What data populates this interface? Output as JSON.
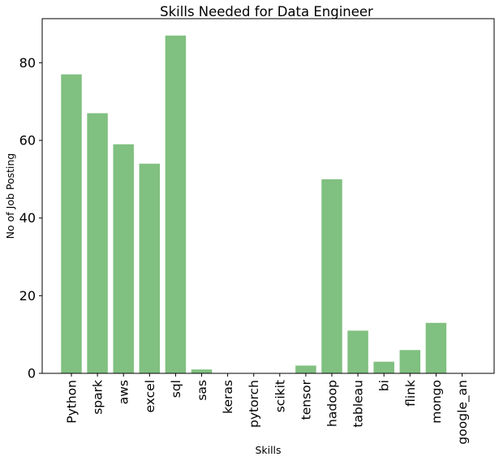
{
  "chart_data": {
    "type": "bar",
    "title": "Skills Needed for Data Engineer",
    "xlabel": "Skills",
    "ylabel": "No of Job Posting",
    "categories": [
      "Python",
      "spark",
      "aws",
      "excel",
      "sql",
      "sas",
      "keras",
      "pytorch",
      "scikit",
      "tensor",
      "hadoop",
      "tableau",
      "bi",
      "flink",
      "mongo",
      "google_an"
    ],
    "values": [
      77,
      67,
      59,
      54,
      87,
      1,
      0,
      0,
      0,
      2,
      50,
      11,
      3,
      6,
      13,
      0
    ],
    "ylim": [
      0,
      91.35
    ],
    "yticks": [
      0,
      20,
      40,
      60,
      80
    ],
    "bar_color": "#80c080",
    "grid": false,
    "legend": "none"
  }
}
